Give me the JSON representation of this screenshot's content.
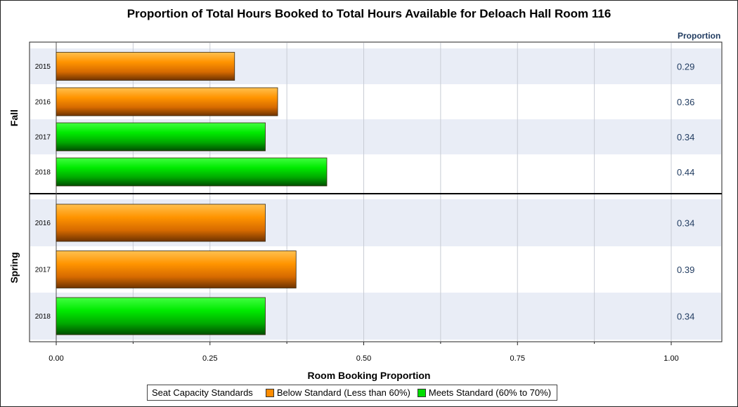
{
  "chart_data": {
    "type": "bar",
    "orientation": "horizontal",
    "title": "Proportion of Total Hours Booked to Total Hours Available for Deloach Hall Room 116",
    "xlabel": "Room Booking Proportion",
    "value_column_header": "Proportion",
    "xlim": [
      0,
      1.05
    ],
    "x_ticks": [
      "0.00",
      "0.25",
      "0.50",
      "0.75",
      "1.00"
    ],
    "grid": true,
    "legend": {
      "title": "Seat Capacity Standards",
      "position": "bottom",
      "entries": [
        {
          "label": "Below Standard (Less than 60%)",
          "color": "#ff8c00"
        },
        {
          "label": "Meets Standard (60% to 70%)",
          "color": "#00dd00"
        }
      ]
    },
    "groups": [
      {
        "name": "Fall",
        "rows": [
          {
            "year": "2015",
            "value": 0.29,
            "label": "0.29",
            "status": "below"
          },
          {
            "year": "2016",
            "value": 0.36,
            "label": "0.36",
            "status": "below"
          },
          {
            "year": "2017",
            "value": 0.34,
            "label": "0.34",
            "status": "meets"
          },
          {
            "year": "2018",
            "value": 0.44,
            "label": "0.44",
            "status": "meets"
          }
        ]
      },
      {
        "name": "Spring",
        "rows": [
          {
            "year": "2016",
            "value": 0.34,
            "label": "0.34",
            "status": "below"
          },
          {
            "year": "2017",
            "value": 0.39,
            "label": "0.39",
            "status": "below"
          },
          {
            "year": "2018",
            "value": 0.34,
            "label": "0.34",
            "status": "meets"
          }
        ]
      }
    ]
  }
}
